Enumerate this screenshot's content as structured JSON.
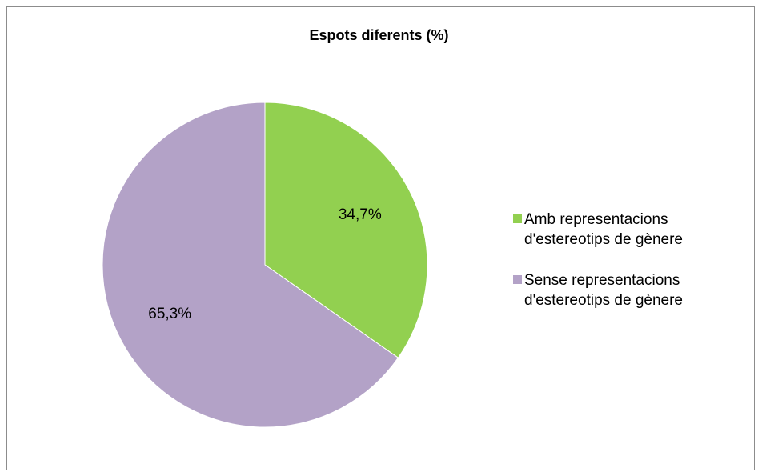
{
  "chart_data": {
    "type": "pie",
    "title": "Espots diferents (%)",
    "slices": [
      {
        "label": "Amb representacions d'estereotips de gènere",
        "value": 34.7,
        "data_label": "34,7%",
        "color": "#92d050"
      },
      {
        "label": "Sense representacions d'estereotips de gènere",
        "value": 65.3,
        "data_label": "65,3%",
        "color": "#b3a2c7"
      }
    ],
    "start_angle_deg": 0,
    "direction": "clockwise",
    "legend_position": "right"
  }
}
